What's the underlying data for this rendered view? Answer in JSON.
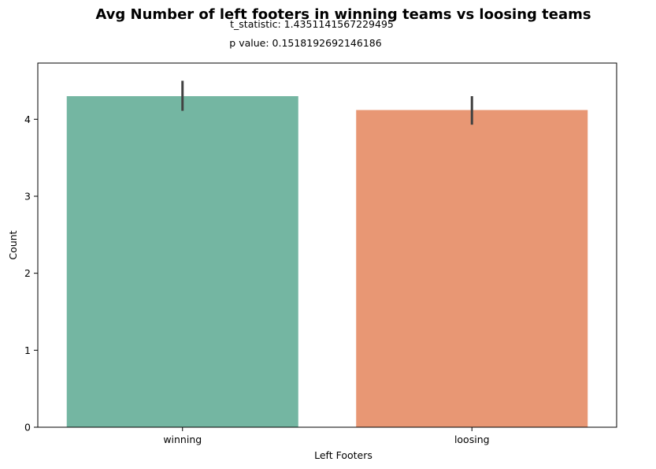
{
  "chart_data": {
    "type": "bar",
    "title": "Avg Number of left footers in winning teams vs loosing teams",
    "subtitle_lines": [
      "t_statistic: 1.4351141567229495",
      "p value: 0.1518192692146186"
    ],
    "xlabel": "Left Footers",
    "ylabel": "Count",
    "categories": [
      "winning",
      "loosing"
    ],
    "values": [
      4.3,
      4.12
    ],
    "error_bars": [
      {
        "low": 4.11,
        "high": 4.5
      },
      {
        "low": 3.93,
        "high": 4.3
      }
    ],
    "colors": [
      "#74b6a2",
      "#e89774"
    ],
    "ylim": [
      0,
      4.73
    ],
    "yticks": [
      0,
      1,
      2,
      3,
      4
    ],
    "grid": false,
    "legend": false
  }
}
